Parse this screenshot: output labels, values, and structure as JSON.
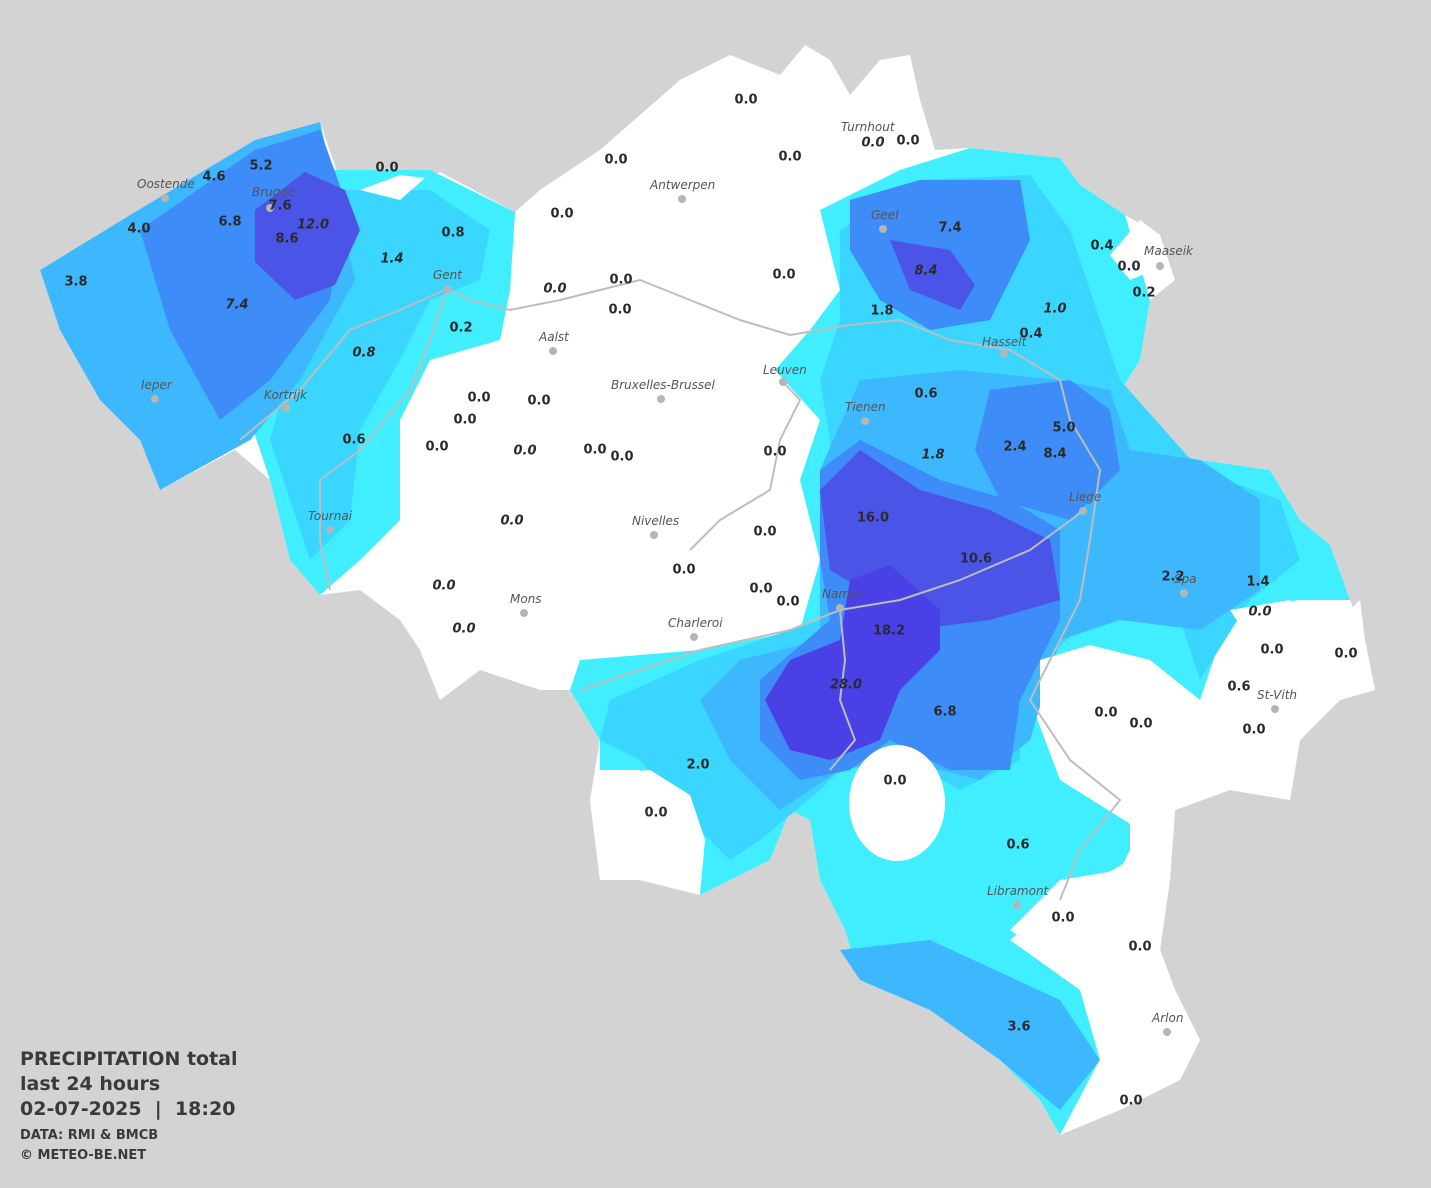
{
  "map": {
    "caption": {
      "title": "PRECIPITATION total",
      "period": "last 24 hours",
      "datetime": "02-07-2025  |  18:20",
      "source": "DATA: RMI & BMCB",
      "credit": "© METEO-BE.NET"
    },
    "cities": [
      "Oostende",
      "Brugge",
      "Gent",
      "Kortrijk",
      "Ieper",
      "Tournai",
      "Aalst",
      "Bruxelles-Brussel",
      "Antwerpen",
      "Turnhout",
      "Geel",
      "Maaseik",
      "Hasselt",
      "Leuven",
      "Tienen",
      "Liege",
      "Nivelles",
      "Mons",
      "Charleroi",
      "Namur",
      "Spa",
      "St-Vith",
      "Libramont",
      "Arlon"
    ],
    "values": [
      "0.0",
      "0.0",
      "0.0",
      "5.2",
      "4.6",
      "0.0",
      "0.0",
      "7.6",
      "6.8",
      "4.0",
      "8.6",
      "0.8",
      "0.0",
      "7.4",
      "0.4",
      "0.0",
      "0.0",
      "3.8",
      "0.0",
      "0.2",
      "0.0",
      "1.8",
      "0.2",
      "0.4",
      "0.6",
      "0.0",
      "0.0",
      "0.0",
      "5.0",
      "0.6",
      "2.4",
      "0.0",
      "0.0",
      "0.0",
      "0.0",
      "8.4",
      "16.0",
      "0.0",
      "10.6",
      "0.0",
      "2.2",
      "1.4",
      "0.0",
      "0.0",
      "18.2",
      "0.0",
      "0.0",
      "0.6",
      "6.8",
      "0.0",
      "0.0",
      "0.0",
      "2.0",
      "0.0",
      "0.0",
      "0.6",
      "0.0",
      "0.0",
      "3.6",
      "0.0"
    ],
    "italic_values": [
      "0.0",
      "12.0",
      "8.4",
      "1.4",
      "0.0",
      "7.4",
      "1.0",
      "0.8",
      "0.0",
      "1.8",
      "0.0",
      "0.0",
      "0.0",
      "0.0",
      "28.0"
    ]
  }
}
